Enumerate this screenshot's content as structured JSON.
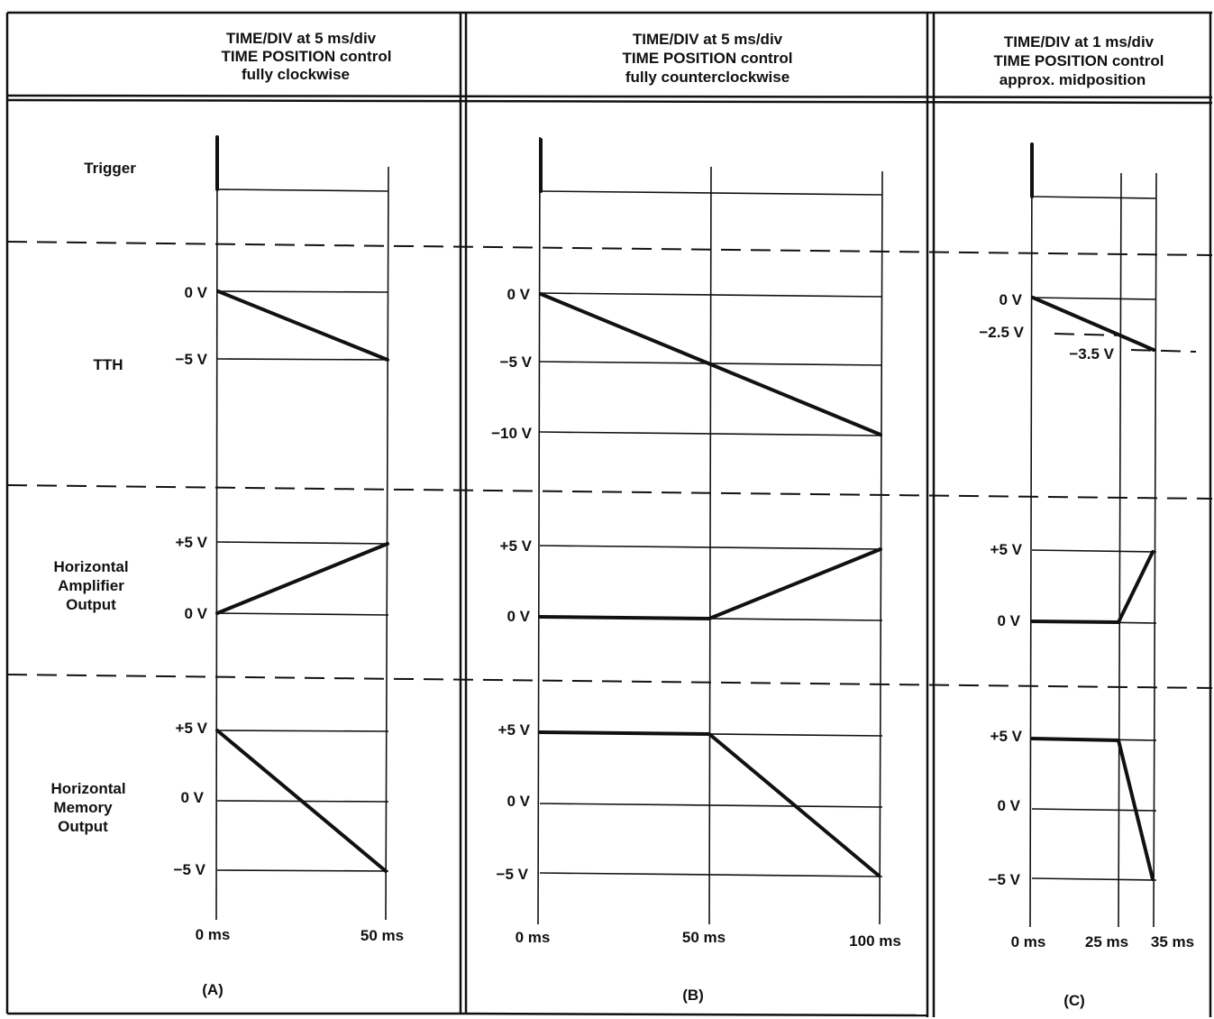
{
  "headers": [
    {
      "line1": "TIME/DIV at 5 ms/div",
      "line2": "TIME POSITION control",
      "line3": "fully clockwise"
    },
    {
      "line1": "TIME/DIV at 5 ms/div",
      "line2": "TIME POSITION control",
      "line3": "fully counterclockwise"
    },
    {
      "line1": "TIME/DIV at 1 ms/div",
      "line2": "TIME POSITION control",
      "line3": "approx. midposition"
    }
  ],
  "row_labels": {
    "trigger": "Trigger",
    "tth": "TTH",
    "h_amp": [
      "Horizontal",
      "Amplifier",
      "Output"
    ],
    "h_mem": [
      "Horizontal",
      "Memory",
      "Output"
    ]
  },
  "panels": [
    {
      "caption": "(A)",
      "time_ticks": [
        "0 ms",
        "50 ms"
      ],
      "tth_levels": [
        "0 V",
        "−5 V"
      ],
      "amp_levels": [
        "+5 V",
        "0 V"
      ],
      "mem_levels": [
        "+5 V",
        "0 V",
        "−5 V"
      ]
    },
    {
      "caption": "(B)",
      "time_ticks": [
        "0 ms",
        "50 ms",
        "100 ms"
      ],
      "tth_levels": [
        "0 V",
        "−5 V",
        "−10 V"
      ],
      "amp_levels": [
        "+5 V",
        "0 V"
      ],
      "mem_levels": [
        "+5 V",
        "0 V",
        "−5 V"
      ]
    },
    {
      "caption": "(C)",
      "time_ticks": [
        "0 ms",
        "25 ms",
        "35 ms"
      ],
      "tth_levels": [
        "0 V",
        "−2.5 V",
        "−3.5 V"
      ],
      "amp_levels": [
        "+5 V",
        "0 V"
      ],
      "mem_levels": [
        "+5 V",
        "0 V",
        "−5 V"
      ]
    }
  ]
}
